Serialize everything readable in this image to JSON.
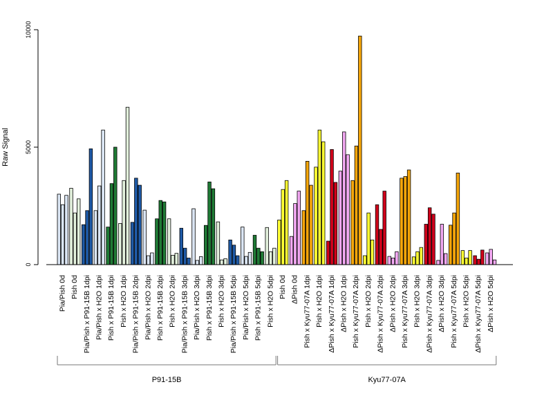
{
  "chart_data": {
    "type": "bar",
    "title": "",
    "xlabel": "",
    "ylabel": "Raw Signal",
    "ylim": [
      0,
      10000
    ],
    "yticks": [
      0,
      5000,
      10000
    ],
    "grid": false,
    "legend": "none",
    "groups": [
      {
        "category": "Pia/Pish 0d",
        "values": [
          3000,
          2550,
          2950
        ],
        "color": "#dbe6f4"
      },
      {
        "category": "Pish 0d",
        "values": [
          3250,
          2200,
          2800
        ],
        "color": "#e2f0dc"
      },
      {
        "category": "Pia/Pish x P91-15B 1dpi",
        "values": [
          1700,
          2300,
          4930
        ],
        "color": "#1f5aa6"
      },
      {
        "category": "Pia/Pish x H2O 1dpi",
        "values": [
          2300,
          3350,
          5730
        ],
        "color": "#dbe6f4"
      },
      {
        "category": "Pish x P91-15B 1dpi",
        "values": [
          1600,
          3450,
          5000
        ],
        "color": "#1f7a35"
      },
      {
        "category": "Pish x H2O 1dpi",
        "values": [
          1750,
          3580,
          6700
        ],
        "color": "#e2f0dc"
      },
      {
        "category": "Pia/Pish x P91-15B 2dpi",
        "values": [
          1800,
          3680,
          3380
        ],
        "color": "#1f5aa6"
      },
      {
        "category": "Pia/Pish x H2O 2dpi",
        "values": [
          2320,
          380,
          500
        ],
        "color": "#dbe6f4"
      },
      {
        "category": "Pish x P91-15B 2dpi",
        "values": [
          1950,
          2730,
          2670
        ],
        "color": "#1f7a35"
      },
      {
        "category": "Pish x H2O 2dpi",
        "values": [
          1950,
          400,
          480
        ],
        "color": "#e2f0dc"
      },
      {
        "category": "Pia/Pish x P91-15B 3dpi",
        "values": [
          1550,
          700,
          280
        ],
        "color": "#1f5aa6"
      },
      {
        "category": "Pia/Pish x H2O 3dpi",
        "values": [
          2380,
          180,
          340
        ],
        "color": "#dbe6f4"
      },
      {
        "category": "Pish x P91-15B 3dpi",
        "values": [
          1670,
          3520,
          3230
        ],
        "color": "#1f7a35"
      },
      {
        "category": "Pish x H2O 3dpi",
        "values": [
          1820,
          200,
          250
        ],
        "color": "#e2f0dc"
      },
      {
        "category": "Pia/Pish x P91-15B 5dpi",
        "values": [
          1050,
          830,
          380
        ],
        "color": "#1f5aa6"
      },
      {
        "category": "Pia/Pish x H2O 5dpi",
        "values": [
          1600,
          350,
          520
        ],
        "color": "#dbe6f4"
      },
      {
        "category": "Pish x P91-15B 5dpi",
        "values": [
          1250,
          700,
          550
        ],
        "color": "#1f7a35"
      },
      {
        "category": "Pish x H2O 5dpi",
        "values": [
          1580,
          550,
          700
        ],
        "color": "#e2f0dc"
      },
      {
        "category": "Pish 0d",
        "values": [
          1900,
          3200,
          3580
        ],
        "color": "#ffff33"
      },
      {
        "category": "ΔPish 0d",
        "values": [
          1200,
          2600,
          3130
        ],
        "color": "#f2a8f2"
      },
      {
        "category": "Pish x Kyu77-07A 1dpi",
        "values": [
          2300,
          4400,
          3380
        ],
        "color": "#f5a60a"
      },
      {
        "category": "Pish x H2O 1dpi",
        "values": [
          4150,
          5730,
          5230
        ],
        "color": "#ffff33"
      },
      {
        "category": "ΔPish x Kyu77-07A 1dpi",
        "values": [
          1000,
          4900,
          3500
        ],
        "color": "#d0021b"
      },
      {
        "category": "ΔPish x H2O 1dpi",
        "values": [
          3980,
          5650,
          4680
        ],
        "color": "#f2a8f2"
      },
      {
        "category": "Pish x Kyu77-07A 2dpi",
        "values": [
          3580,
          5050,
          9730
        ],
        "color": "#f5a60a"
      },
      {
        "category": "Pish x H2O 2dpi",
        "values": [
          380,
          2200,
          1050
        ],
        "color": "#ffff33"
      },
      {
        "category": "ΔPish x Kyu77-07A 2dpi",
        "values": [
          2550,
          1500,
          3130
        ],
        "color": "#d0021b"
      },
      {
        "category": "ΔPish x H2O 2dpi",
        "values": [
          350,
          280,
          550
        ],
        "color": "#f2a8f2"
      },
      {
        "category": "Pish x Kyu77-07A 3dpi",
        "values": [
          3680,
          3750,
          4030
        ],
        "color": "#f5a60a"
      },
      {
        "category": "Pish x H2O 3dpi",
        "values": [
          330,
          550,
          730
        ],
        "color": "#ffff33"
      },
      {
        "category": "ΔPish x Kyu77-07A 3dpi",
        "values": [
          1720,
          2420,
          2150
        ],
        "color": "#d0021b"
      },
      {
        "category": "ΔPish x H2O 3dpi",
        "values": [
          180,
          1720,
          470
        ],
        "color": "#f2a8f2"
      },
      {
        "category": "Pish x Kyu77-07A 5dpi",
        "values": [
          1680,
          2200,
          3900
        ],
        "color": "#f5a60a"
      },
      {
        "category": "Pish x H2O 5dpi",
        "values": [
          600,
          280,
          600
        ],
        "color": "#ffff33"
      },
      {
        "category": "ΔPish x Kyu77-07A 5dpi",
        "values": [
          380,
          230,
          620
        ],
        "color": "#d0021b"
      },
      {
        "category": "ΔPish x H2O 5dpi",
        "values": [
          500,
          650,
          200
        ],
        "color": "#f2a8f2"
      }
    ],
    "super_groups": [
      {
        "label": "P91-15B",
        "from": 0,
        "to": 17
      },
      {
        "label": "Kyu77-07A",
        "from": 18,
        "to": 35
      }
    ]
  }
}
